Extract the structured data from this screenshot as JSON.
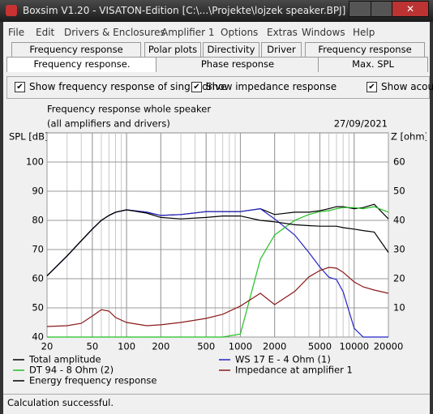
{
  "window": {
    "title": "Boxsim V1.20 - VISATON-Edition [C:\\...\\Projekte\\lojzek speaker.BPJ]"
  },
  "menu": [
    "File",
    "Edit",
    "Drivers & Enclosures",
    "Amplifier 1",
    "Options",
    "Extras",
    "Windows",
    "Help"
  ],
  "tabs_row1": [
    "Frequency response directions",
    "Polar plots",
    "Directivity",
    "Driver",
    "Frequency response electr.."
  ],
  "tabs_row2": [
    "Frequency response.",
    "Phase response",
    "Max. SPL"
  ],
  "checkboxes": [
    "Show frequency response of single drive",
    "Show impedance response",
    "Show acous"
  ],
  "chart_data": {
    "type": "line",
    "title": "Frequency response whole speaker",
    "subtitle": "(all amplifiers and drivers)",
    "date": "27/09/2021",
    "ylabel": "SPL [dB]",
    "y2label": "Z [ohm]",
    "xscale": "log",
    "grid": true,
    "x": [
      20,
      30,
      40,
      50,
      60,
      70,
      80,
      100,
      150,
      200,
      300,
      500,
      700,
      1000,
      1500,
      2000,
      3000,
      4000,
      5000,
      6000,
      7000,
      8000,
      10000,
      12000,
      15000,
      20000
    ],
    "xlim": [
      20,
      20000
    ],
    "xticks": [
      20,
      50,
      100,
      200,
      500,
      1000,
      2000,
      5000,
      10000,
      20000
    ],
    "ylim": [
      40,
      110
    ],
    "yticks": [
      40,
      50,
      60,
      70,
      80,
      90,
      100
    ],
    "y2lim": [
      0,
      70
    ],
    "y2ticks": [
      10,
      20,
      30,
      40,
      50,
      60
    ],
    "series": [
      {
        "name": "Total amplitude",
        "color": "#000000",
        "values": [
          61,
          67.8,
          73,
          77,
          80,
          81.7,
          82.8,
          83.6,
          82.8,
          81.7,
          82,
          83,
          83,
          83,
          84,
          82,
          82.8,
          82.8,
          83.3,
          84,
          84.7,
          84.7,
          84,
          84.4,
          85.5,
          80.5
        ]
      },
      {
        "name": "WS 17 E - 4 Ohm  (1)",
        "color": "#2424c8",
        "values": [
          61,
          67.8,
          73,
          77,
          80,
          81.7,
          82.8,
          83.6,
          82.8,
          81.7,
          82,
          83,
          83,
          83,
          84,
          80.5,
          75,
          69,
          64,
          60.5,
          59.7,
          55.5,
          43,
          40,
          40,
          40
        ]
      },
      {
        "name": "DT 94 - 8 Ohm (2)",
        "color": "#22c022",
        "values": [
          40,
          40,
          40,
          40,
          40,
          40,
          40,
          40,
          40,
          40,
          40,
          40,
          40,
          41,
          66.7,
          75,
          80,
          82,
          83,
          83.3,
          84,
          84.4,
          84.4,
          84,
          84.7,
          82.8
        ]
      },
      {
        "name": "Impedance at amplifier 1",
        "color": "#8b1a1a",
        "axis": "y2",
        "values": [
          3.6,
          3.9,
          4.7,
          7.2,
          9.4,
          8.9,
          6.7,
          5,
          3.9,
          4.2,
          5,
          6.4,
          7.8,
          10.6,
          15,
          11.1,
          15.6,
          20.6,
          22.8,
          23.9,
          23.6,
          22.2,
          18.9,
          17.2,
          16.1,
          15
        ]
      },
      {
        "name": "Energy frequency response",
        "color": "#000000",
        "values": [
          61,
          67.8,
          73,
          77,
          80,
          81.7,
          82.8,
          83.6,
          82.5,
          81,
          80.5,
          81,
          81.5,
          81.5,
          80,
          79.5,
          78.5,
          78.2,
          78,
          78,
          78,
          77.5,
          77,
          76.5,
          76,
          69
        ]
      }
    ]
  },
  "status": "Calculation successful."
}
